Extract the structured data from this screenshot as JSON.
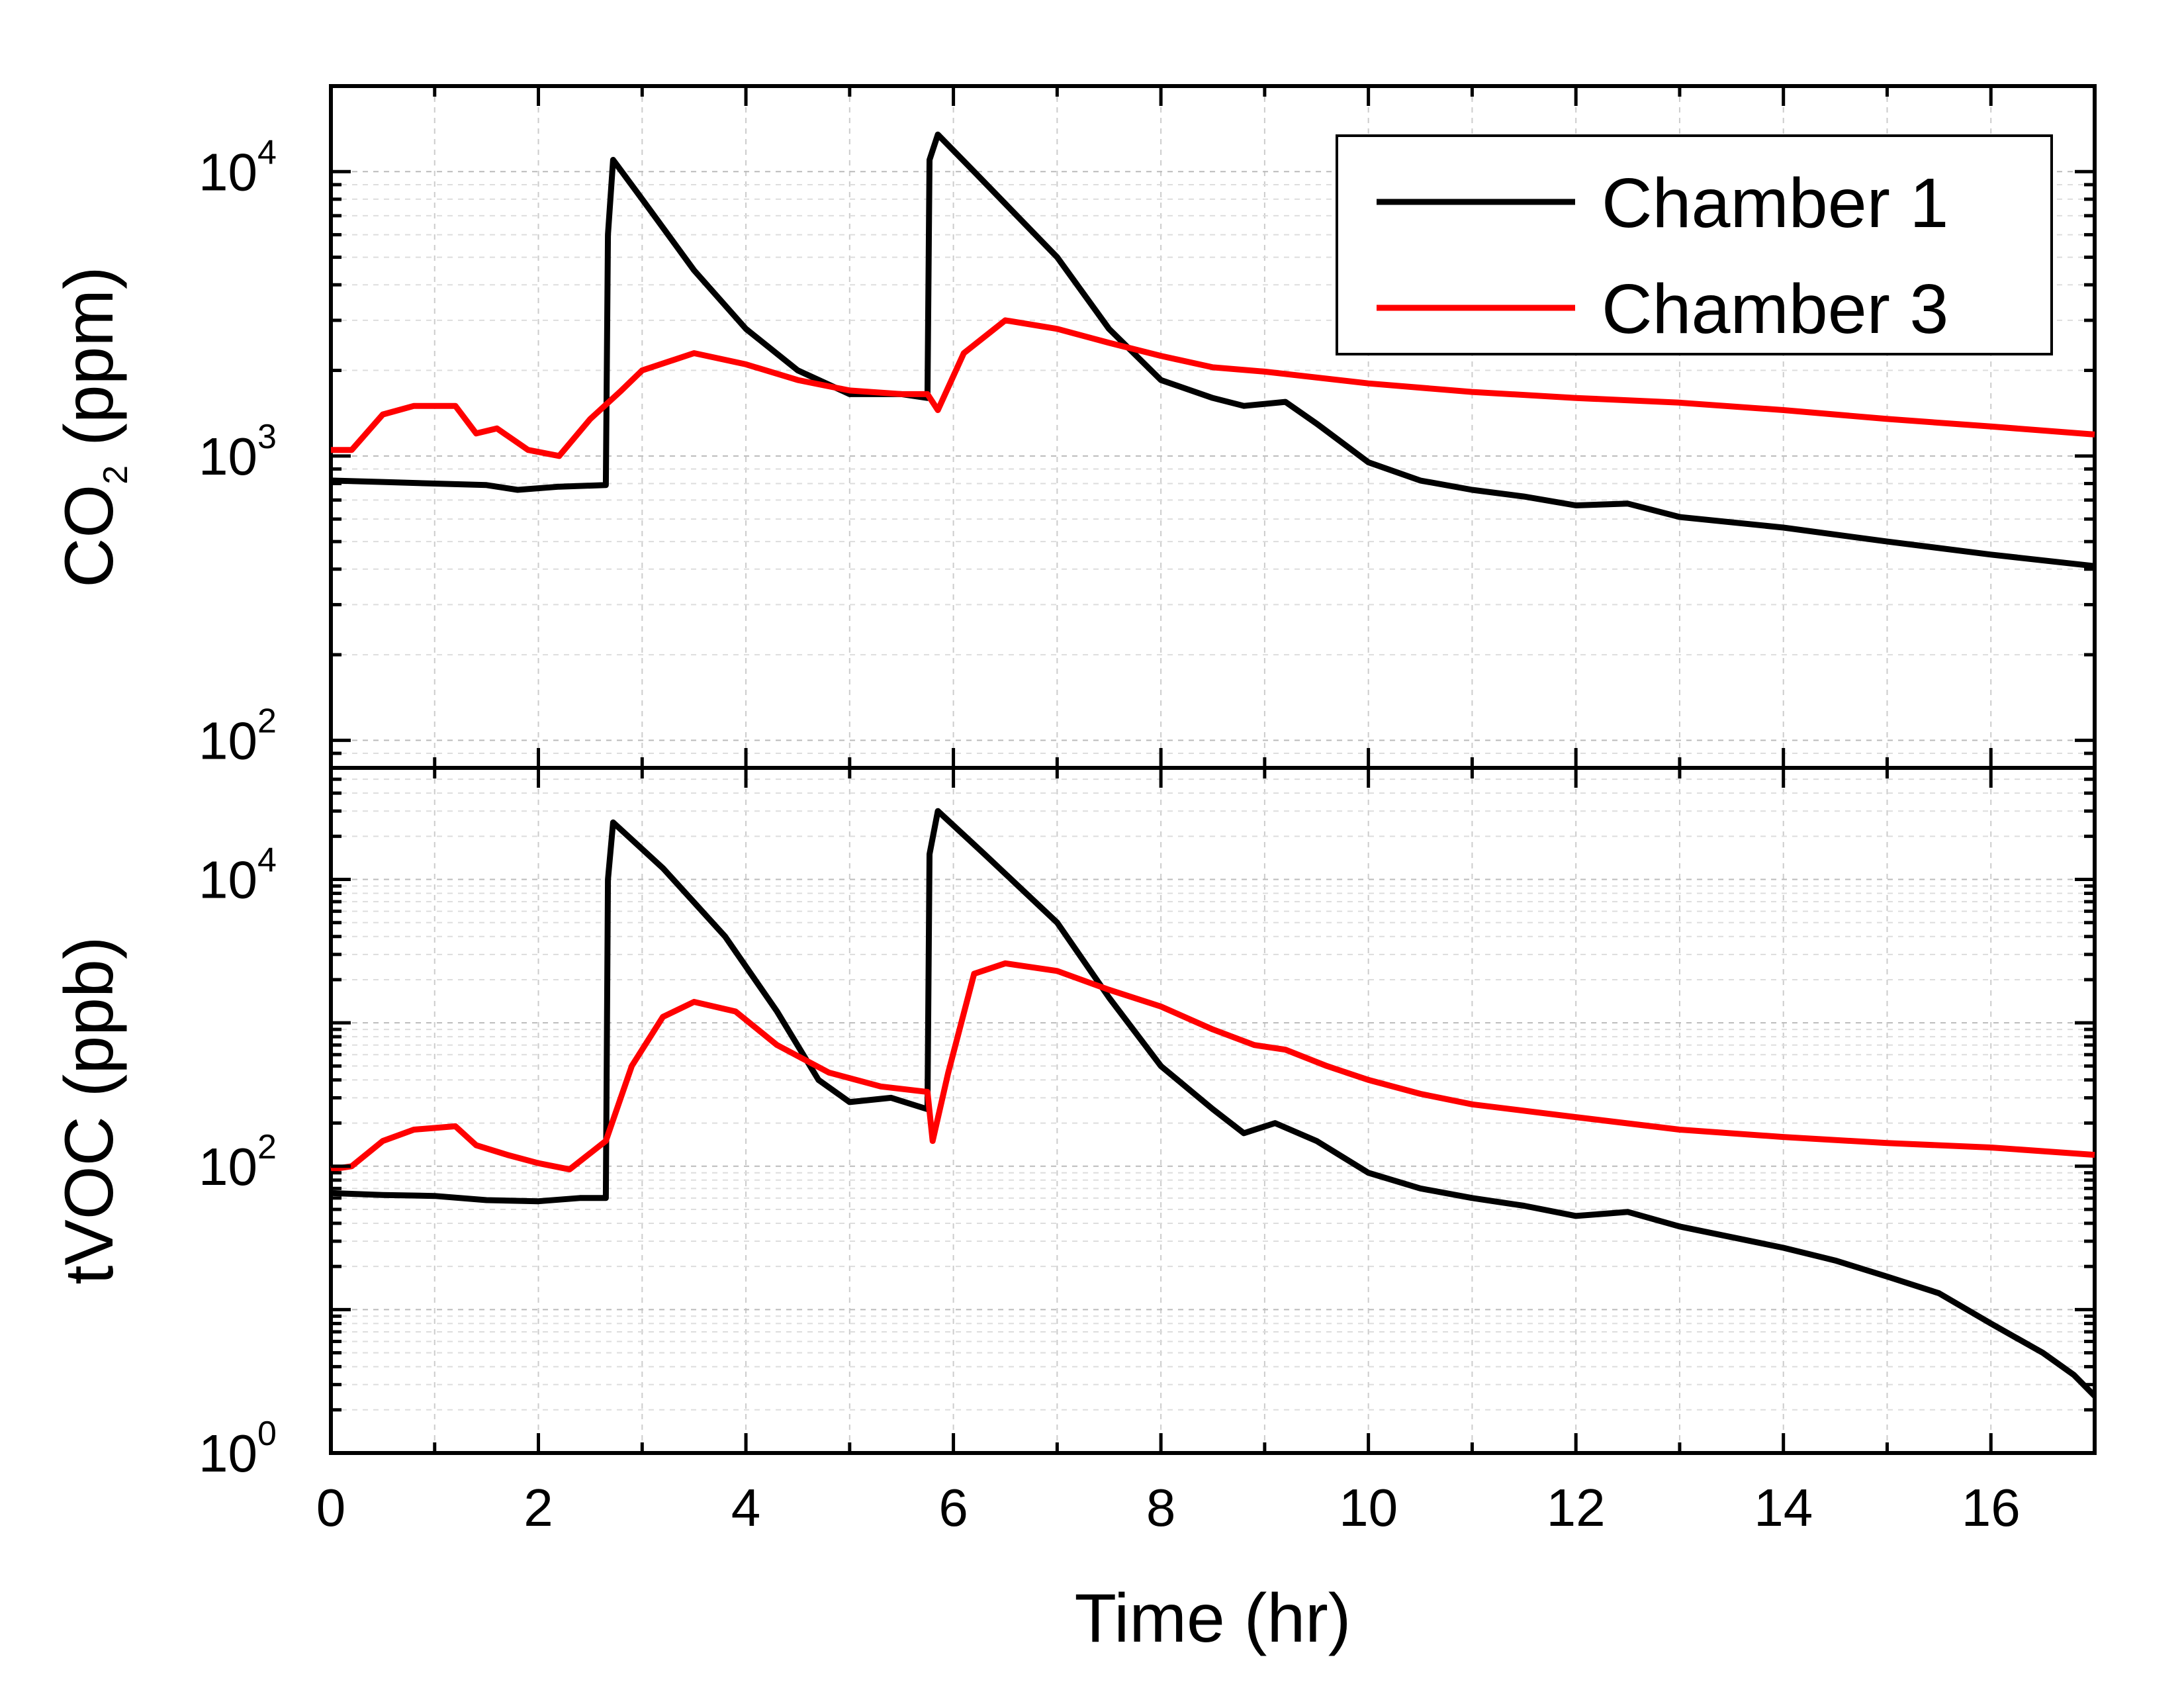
{
  "chart_data": {
    "type": "line",
    "xlabel": "Time (hr)",
    "xlim": [
      0,
      17
    ],
    "xticks": [
      0,
      2,
      4,
      6,
      8,
      10,
      12,
      14,
      16
    ],
    "legend": {
      "position": "top-right",
      "entries": [
        "Chamber 1",
        "Chamber 3"
      ]
    },
    "grid": true,
    "colors": {
      "Chamber 1": "#000000",
      "Chamber 3": "#ff0000"
    },
    "panels": [
      {
        "id": "co2",
        "ylabel_main": "CO",
        "ylabel_sub": "2",
        "ylabel_rest": " (ppm)",
        "yscale": "log",
        "ylim": [
          80,
          20000
        ],
        "ytick_labels": [
          {
            "value": 100,
            "base": "10",
            "exp": "2"
          },
          {
            "value": 1000,
            "base": "10",
            "exp": "3"
          },
          {
            "value": 10000,
            "base": "10",
            "exp": "4"
          }
        ],
        "series": [
          {
            "name": "Chamber 1",
            "points": [
              [
                0,
                820
              ],
              [
                0.5,
                810
              ],
              [
                1,
                800
              ],
              [
                1.5,
                790
              ],
              [
                1.8,
                760
              ],
              [
                2.2,
                780
              ],
              [
                2.65,
                790
              ],
              [
                2.67,
                6000
              ],
              [
                2.72,
                11000
              ],
              [
                3.0,
                8000
              ],
              [
                3.5,
                4500
              ],
              [
                4.0,
                2800
              ],
              [
                4.5,
                2000
              ],
              [
                5.0,
                1650
              ],
              [
                5.5,
                1650
              ],
              [
                5.75,
                1600
              ],
              [
                5.77,
                11000
              ],
              [
                5.85,
                13500
              ],
              [
                6.2,
                10000
              ],
              [
                7.0,
                5000
              ],
              [
                7.5,
                2800
              ],
              [
                8.0,
                1850
              ],
              [
                8.5,
                1600
              ],
              [
                8.8,
                1500
              ],
              [
                9.2,
                1550
              ],
              [
                9.5,
                1300
              ],
              [
                10.0,
                950
              ],
              [
                10.5,
                820
              ],
              [
                11,
                760
              ],
              [
                11.5,
                720
              ],
              [
                12,
                670
              ],
              [
                12.5,
                680
              ],
              [
                13,
                610
              ],
              [
                14,
                560
              ],
              [
                15,
                500
              ],
              [
                16,
                450
              ],
              [
                17,
                410
              ]
            ]
          },
          {
            "name": "Chamber 3",
            "points": [
              [
                0,
                1050
              ],
              [
                0.2,
                1050
              ],
              [
                0.5,
                1400
              ],
              [
                0.8,
                1500
              ],
              [
                1.2,
                1500
              ],
              [
                1.4,
                1200
              ],
              [
                1.6,
                1250
              ],
              [
                1.9,
                1050
              ],
              [
                2.2,
                1000
              ],
              [
                2.5,
                1350
              ],
              [
                2.8,
                1700
              ],
              [
                3.0,
                2000
              ],
              [
                3.5,
                2300
              ],
              [
                4.0,
                2100
              ],
              [
                4.5,
                1850
              ],
              [
                5.0,
                1700
              ],
              [
                5.5,
                1650
              ],
              [
                5.75,
                1650
              ],
              [
                5.85,
                1450
              ],
              [
                6.1,
                2300
              ],
              [
                6.5,
                3000
              ],
              [
                7.0,
                2800
              ],
              [
                7.5,
                2500
              ],
              [
                8.0,
                2250
              ],
              [
                8.5,
                2050
              ],
              [
                9.0,
                1980
              ],
              [
                10,
                1800
              ],
              [
                11,
                1680
              ],
              [
                12,
                1600
              ],
              [
                13,
                1540
              ],
              [
                14,
                1450
              ],
              [
                15,
                1350
              ],
              [
                16,
                1270
              ],
              [
                17,
                1190
              ]
            ]
          }
        ]
      },
      {
        "id": "tvoc",
        "ylabel_main": "tVOC (ppb)",
        "ylabel_sub": "",
        "ylabel_rest": "",
        "yscale": "log",
        "ylim": [
          1,
          60000
        ],
        "ytick_labels": [
          {
            "value": 1,
            "base": "10",
            "exp": "0"
          },
          {
            "value": 100,
            "base": "10",
            "exp": "2"
          },
          {
            "value": 10000,
            "base": "10",
            "exp": "4"
          }
        ],
        "series": [
          {
            "name": "Chamber 1",
            "points": [
              [
                0,
                65
              ],
              [
                0.5,
                63
              ],
              [
                1,
                62
              ],
              [
                1.5,
                58
              ],
              [
                2.0,
                57
              ],
              [
                2.4,
                60
              ],
              [
                2.65,
                60
              ],
              [
                2.67,
                10000
              ],
              [
                2.72,
                25000
              ],
              [
                3.2,
                12000
              ],
              [
                3.8,
                4000
              ],
              [
                4.3,
                1200
              ],
              [
                4.7,
                400
              ],
              [
                5.0,
                280
              ],
              [
                5.4,
                300
              ],
              [
                5.75,
                250
              ],
              [
                5.77,
                15000
              ],
              [
                5.85,
                30000
              ],
              [
                6.3,
                15000
              ],
              [
                7.0,
                5000
              ],
              [
                7.5,
                1500
              ],
              [
                8.0,
                500
              ],
              [
                8.5,
                250
              ],
              [
                8.8,
                170
              ],
              [
                9.1,
                200
              ],
              [
                9.5,
                150
              ],
              [
                10.0,
                90
              ],
              [
                10.5,
                70
              ],
              [
                11,
                60
              ],
              [
                11.5,
                53
              ],
              [
                12,
                45
              ],
              [
                12.5,
                48
              ],
              [
                13,
                38
              ],
              [
                14,
                27
              ],
              [
                14.5,
                22
              ],
              [
                15,
                17
              ],
              [
                15.5,
                13
              ],
              [
                16,
                8
              ],
              [
                16.5,
                5
              ],
              [
                16.8,
                3.5
              ],
              [
                17,
                2.5
              ]
            ]
          },
          {
            "name": "Chamber 3",
            "points": [
              [
                0,
                95
              ],
              [
                0.2,
                100
              ],
              [
                0.5,
                150
              ],
              [
                0.8,
                180
              ],
              [
                1.2,
                190
              ],
              [
                1.4,
                140
              ],
              [
                1.7,
                120
              ],
              [
                2.0,
                105
              ],
              [
                2.3,
                95
              ],
              [
                2.65,
                150
              ],
              [
                2.9,
                500
              ],
              [
                3.2,
                1100
              ],
              [
                3.5,
                1400
              ],
              [
                3.9,
                1200
              ],
              [
                4.3,
                700
              ],
              [
                4.8,
                450
              ],
              [
                5.3,
                360
              ],
              [
                5.75,
                330
              ],
              [
                5.8,
                150
              ],
              [
                5.95,
                450
              ],
              [
                6.2,
                2200
              ],
              [
                6.5,
                2600
              ],
              [
                7.0,
                2300
              ],
              [
                7.5,
                1700
              ],
              [
                8.0,
                1300
              ],
              [
                8.5,
                900
              ],
              [
                8.9,
                700
              ],
              [
                9.2,
                650
              ],
              [
                9.6,
                500
              ],
              [
                10,
                400
              ],
              [
                10.5,
                320
              ],
              [
                11,
                270
              ],
              [
                12,
                220
              ],
              [
                13,
                180
              ],
              [
                14,
                160
              ],
              [
                15,
                145
              ],
              [
                16,
                135
              ],
              [
                17,
                120
              ]
            ]
          }
        ]
      }
    ]
  }
}
